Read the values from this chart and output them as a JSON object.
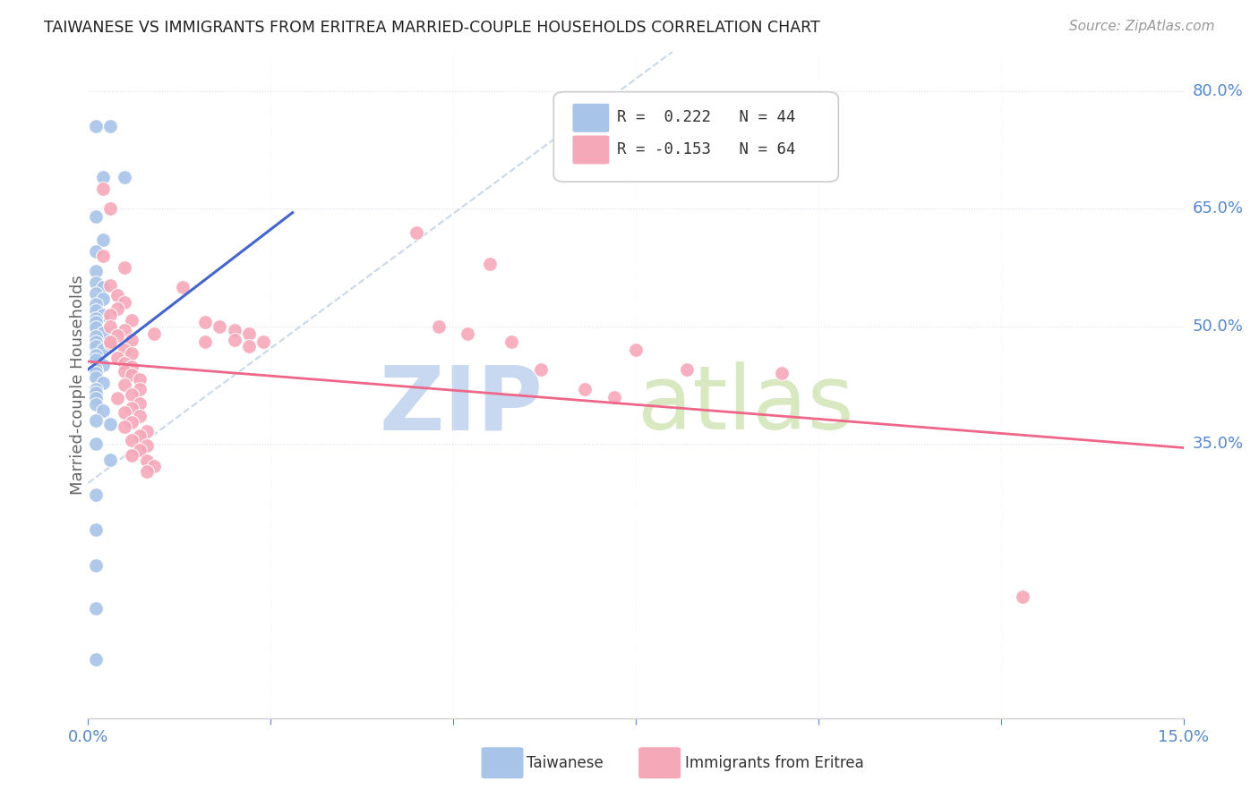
{
  "title": "TAIWANESE VS IMMIGRANTS FROM ERITREA MARRIED-COUPLE HOUSEHOLDS CORRELATION CHART",
  "source": "Source: ZipAtlas.com",
  "ylabel": "Married-couple Households",
  "xlim": [
    0.0,
    0.15
  ],
  "ylim": [
    0.0,
    0.85
  ],
  "ytick_labels_right": [
    "80.0%",
    "65.0%",
    "50.0%",
    "35.0%"
  ],
  "ytick_vals_right": [
    0.8,
    0.65,
    0.5,
    0.35
  ],
  "watermark_zip": "ZIP",
  "watermark_atlas": "atlas",
  "taiwanese_color": "#a8c4e8",
  "eritrea_color": "#f5a8b8",
  "taiwanese_line_color": "#4466cc",
  "eritrea_line_color": "#ee6688",
  "diagonal_color": "#c8d8e8",
  "tw_line_x": [
    0.0,
    0.028
  ],
  "tw_line_y": [
    0.445,
    0.645
  ],
  "er_line_x": [
    0.0,
    0.15
  ],
  "er_line_y": [
    0.455,
    0.345
  ],
  "taiwanese_points": [
    [
      0.001,
      0.755
    ],
    [
      0.003,
      0.755
    ],
    [
      0.002,
      0.69
    ],
    [
      0.005,
      0.69
    ],
    [
      0.001,
      0.64
    ],
    [
      0.002,
      0.61
    ],
    [
      0.001,
      0.595
    ],
    [
      0.001,
      0.57
    ],
    [
      0.001,
      0.555
    ],
    [
      0.002,
      0.55
    ],
    [
      0.001,
      0.542
    ],
    [
      0.002,
      0.535
    ],
    [
      0.001,
      0.528
    ],
    [
      0.001,
      0.52
    ],
    [
      0.002,
      0.515
    ],
    [
      0.001,
      0.51
    ],
    [
      0.001,
      0.505
    ],
    [
      0.001,
      0.498
    ],
    [
      0.002,
      0.492
    ],
    [
      0.001,
      0.487
    ],
    [
      0.001,
      0.48
    ],
    [
      0.001,
      0.475
    ],
    [
      0.002,
      0.47
    ],
    [
      0.001,
      0.463
    ],
    [
      0.001,
      0.457
    ],
    [
      0.002,
      0.45
    ],
    [
      0.001,
      0.445
    ],
    [
      0.001,
      0.44
    ],
    [
      0.001,
      0.435
    ],
    [
      0.002,
      0.428
    ],
    [
      0.001,
      0.42
    ],
    [
      0.001,
      0.415
    ],
    [
      0.001,
      0.408
    ],
    [
      0.001,
      0.4
    ],
    [
      0.002,
      0.392
    ],
    [
      0.001,
      0.38
    ],
    [
      0.003,
      0.375
    ],
    [
      0.001,
      0.35
    ],
    [
      0.003,
      0.33
    ],
    [
      0.001,
      0.285
    ],
    [
      0.001,
      0.24
    ],
    [
      0.001,
      0.195
    ],
    [
      0.001,
      0.14
    ],
    [
      0.001,
      0.075
    ]
  ],
  "eritrea_points": [
    [
      0.002,
      0.675
    ],
    [
      0.003,
      0.65
    ],
    [
      0.002,
      0.59
    ],
    [
      0.005,
      0.575
    ],
    [
      0.003,
      0.552
    ],
    [
      0.004,
      0.54
    ],
    [
      0.005,
      0.53
    ],
    [
      0.004,
      0.522
    ],
    [
      0.003,
      0.515
    ],
    [
      0.006,
      0.508
    ],
    [
      0.003,
      0.5
    ],
    [
      0.005,
      0.495
    ],
    [
      0.004,
      0.488
    ],
    [
      0.006,
      0.482
    ],
    [
      0.003,
      0.478
    ],
    [
      0.005,
      0.47
    ],
    [
      0.006,
      0.465
    ],
    [
      0.004,
      0.46
    ],
    [
      0.005,
      0.453
    ],
    [
      0.006,
      0.448
    ],
    [
      0.005,
      0.442
    ],
    [
      0.006,
      0.438
    ],
    [
      0.007,
      0.432
    ],
    [
      0.005,
      0.425
    ],
    [
      0.007,
      0.42
    ],
    [
      0.006,
      0.413
    ],
    [
      0.004,
      0.408
    ],
    [
      0.007,
      0.402
    ],
    [
      0.006,
      0.396
    ],
    [
      0.005,
      0.39
    ],
    [
      0.007,
      0.385
    ],
    [
      0.006,
      0.378
    ],
    [
      0.005,
      0.372
    ],
    [
      0.008,
      0.366
    ],
    [
      0.007,
      0.36
    ],
    [
      0.006,
      0.355
    ],
    [
      0.008,
      0.348
    ],
    [
      0.007,
      0.342
    ],
    [
      0.006,
      0.335
    ],
    [
      0.008,
      0.328
    ],
    [
      0.009,
      0.322
    ],
    [
      0.008,
      0.315
    ],
    [
      0.003,
      0.48
    ],
    [
      0.009,
      0.49
    ],
    [
      0.013,
      0.55
    ],
    [
      0.016,
      0.505
    ],
    [
      0.016,
      0.48
    ],
    [
      0.018,
      0.5
    ],
    [
      0.02,
      0.495
    ],
    [
      0.022,
      0.49
    ],
    [
      0.02,
      0.482
    ],
    [
      0.024,
      0.48
    ],
    [
      0.022,
      0.475
    ],
    [
      0.045,
      0.62
    ],
    [
      0.055,
      0.58
    ],
    [
      0.048,
      0.5
    ],
    [
      0.052,
      0.49
    ],
    [
      0.058,
      0.48
    ],
    [
      0.062,
      0.445
    ],
    [
      0.068,
      0.42
    ],
    [
      0.072,
      0.41
    ],
    [
      0.075,
      0.47
    ],
    [
      0.082,
      0.445
    ],
    [
      0.095,
      0.44
    ],
    [
      0.128,
      0.155
    ]
  ]
}
